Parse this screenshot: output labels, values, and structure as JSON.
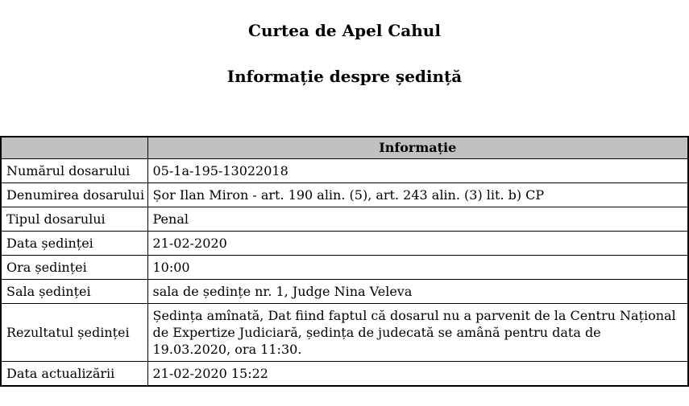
{
  "page": {
    "title": "Curtea de Apel Cahul",
    "subtitle": "Informație despre ședință"
  },
  "table": {
    "header": "Informație",
    "rows": [
      {
        "label": "Numărul dosarului",
        "value": "05-1a-195-13022018"
      },
      {
        "label": "Denumirea dosarului",
        "value": "Șor Ilan Miron - art. 190 alin. (5), art. 243 alin. (3) lit. b) CP"
      },
      {
        "label": "Tipul dosarului",
        "value": "Penal"
      },
      {
        "label": "Data ședinței",
        "value": "21-02-2020"
      },
      {
        "label": "Ora ședinței",
        "value": "10:00"
      },
      {
        "label": "Sala ședinței",
        "value": "sala de ședințe nr. 1, Judge Nina Veleva"
      },
      {
        "label": "Rezultatul ședinței",
        "value": "Ședința amînată, Dat fiind faptul că dosarul nu a parvenit de la Centru Național de Expertize Judiciară, ședința de judecată se amână pentru data de 19.03.2020, ora 11:30."
      },
      {
        "label": "Data actualizării",
        "value": "21-02-2020 15:22"
      }
    ],
    "colors": {
      "header_bg": "#c0c0c0",
      "border": "#000000"
    }
  }
}
